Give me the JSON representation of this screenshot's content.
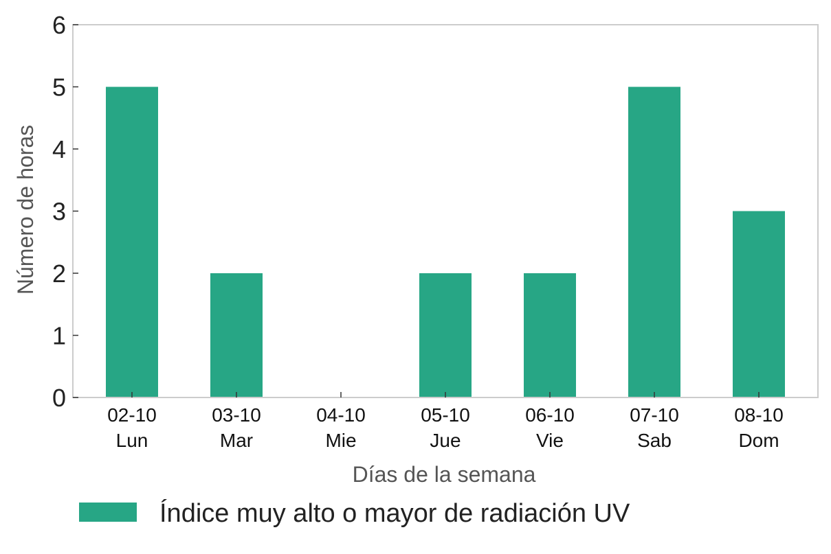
{
  "chart_data": {
    "type": "bar",
    "categories": [
      [
        "02-10",
        "Lun"
      ],
      [
        "03-10",
        "Mar"
      ],
      [
        "04-10",
        "Mie"
      ],
      [
        "05-10",
        "Jue"
      ],
      [
        "06-10",
        "Vie"
      ],
      [
        "07-10",
        "Sab"
      ],
      [
        "08-10",
        "Dom"
      ]
    ],
    "series": [
      {
        "name": "Índice muy alto o mayor de radiación UV",
        "values": [
          5,
          2,
          0,
          2,
          2,
          5,
          3
        ],
        "color": "#27a685"
      }
    ],
    "xlabel": "Días de la semana",
    "ylabel": "Número de horas",
    "ylim": [
      0,
      6
    ],
    "yticks": [
      "0",
      "1",
      "2",
      "3",
      "4",
      "5",
      "6"
    ],
    "grid": false,
    "legend_position": "bottom"
  }
}
